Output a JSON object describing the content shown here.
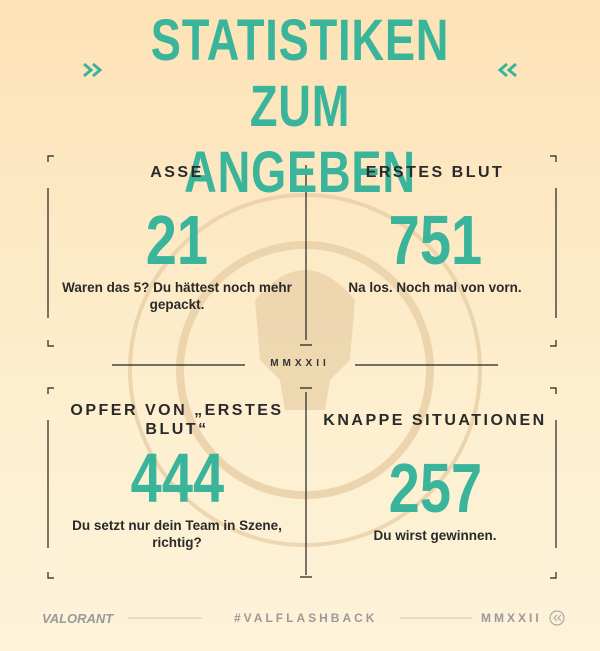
{
  "header": {
    "title": "STATISTIKEN ZUM ANGEBEN"
  },
  "stats": [
    {
      "label": "ASSE",
      "value": 21,
      "caption": "Waren das 5? Du hättest noch mehr gepackt."
    },
    {
      "label": "ERSTES BLUT",
      "value": 751,
      "caption": "Na los. Noch mal von vorn."
    },
    {
      "label": "OPFER VON „ERSTES BLUT“",
      "value": 444,
      "caption": "Du setzt nur dein Team in Szene, richtig?"
    },
    {
      "label": "KNAPPE SITUATIONEN",
      "value": 257,
      "caption": "Du wirst gewinnen."
    }
  ],
  "divider": "MMXXII",
  "footer": {
    "logo": "VALORANT",
    "hashtag": "#VALFLASHBACK",
    "year": "MMXXII"
  }
}
